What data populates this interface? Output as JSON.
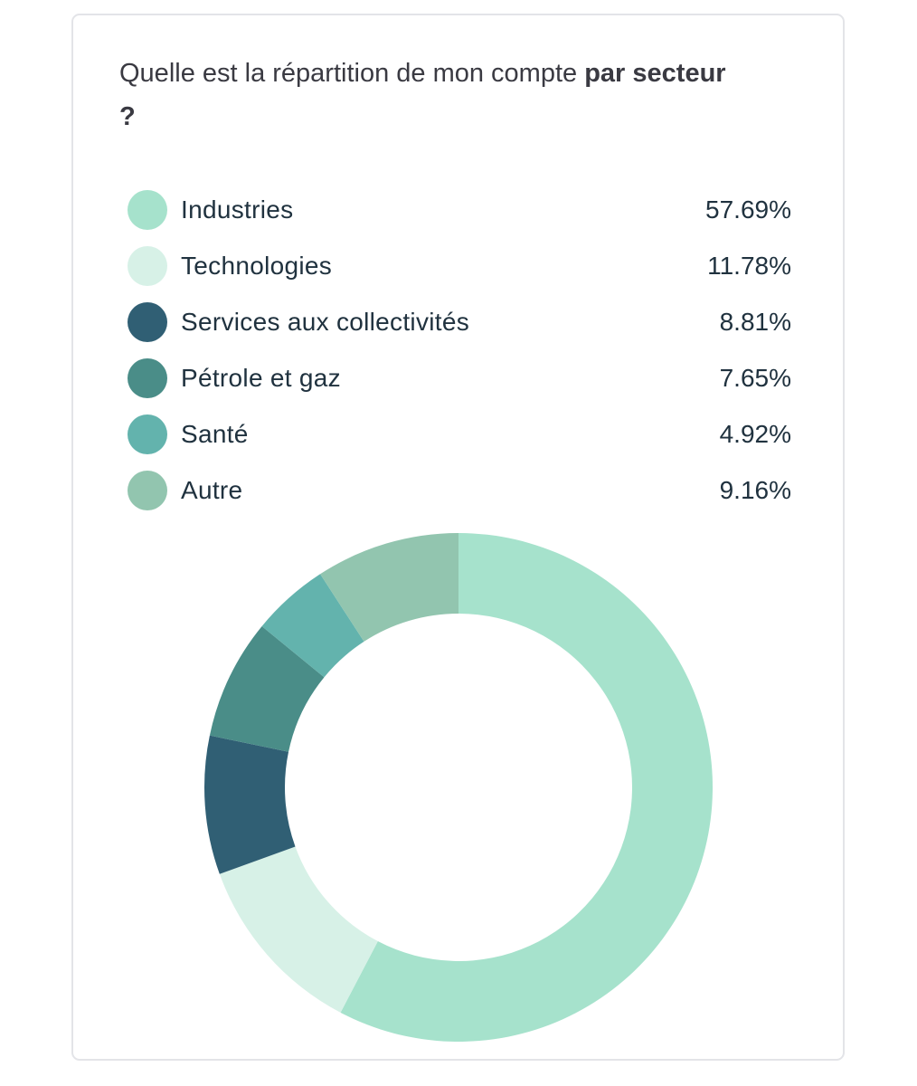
{
  "question": {
    "prefix": "Quelle est la répartition de mon compte ",
    "emphasis": "par secteur ?"
  },
  "chart_data": {
    "type": "pie",
    "variant": "donut",
    "start_angle_deg": 0,
    "direction": "clockwise",
    "legend_position": "top",
    "unit": "%",
    "slices": [
      {
        "label": "Industries",
        "value": 57.69,
        "display": "57.69%",
        "color": "#a6e2cc"
      },
      {
        "label": "Technologies",
        "value": 11.78,
        "display": "11.78%",
        "color": "#d7f1e7"
      },
      {
        "label": "Services aux collectivités",
        "value": 8.81,
        "display": "8.81%",
        "color": "#305f74"
      },
      {
        "label": "Pétrole et gaz",
        "value": 7.65,
        "display": "7.65%",
        "color": "#4a8d88"
      },
      {
        "label": "Santé",
        "value": 4.92,
        "display": "4.92%",
        "color": "#63b3ad"
      },
      {
        "label": "Autre",
        "value": 9.16,
        "display": "9.16%",
        "color": "#92c5af"
      }
    ]
  }
}
